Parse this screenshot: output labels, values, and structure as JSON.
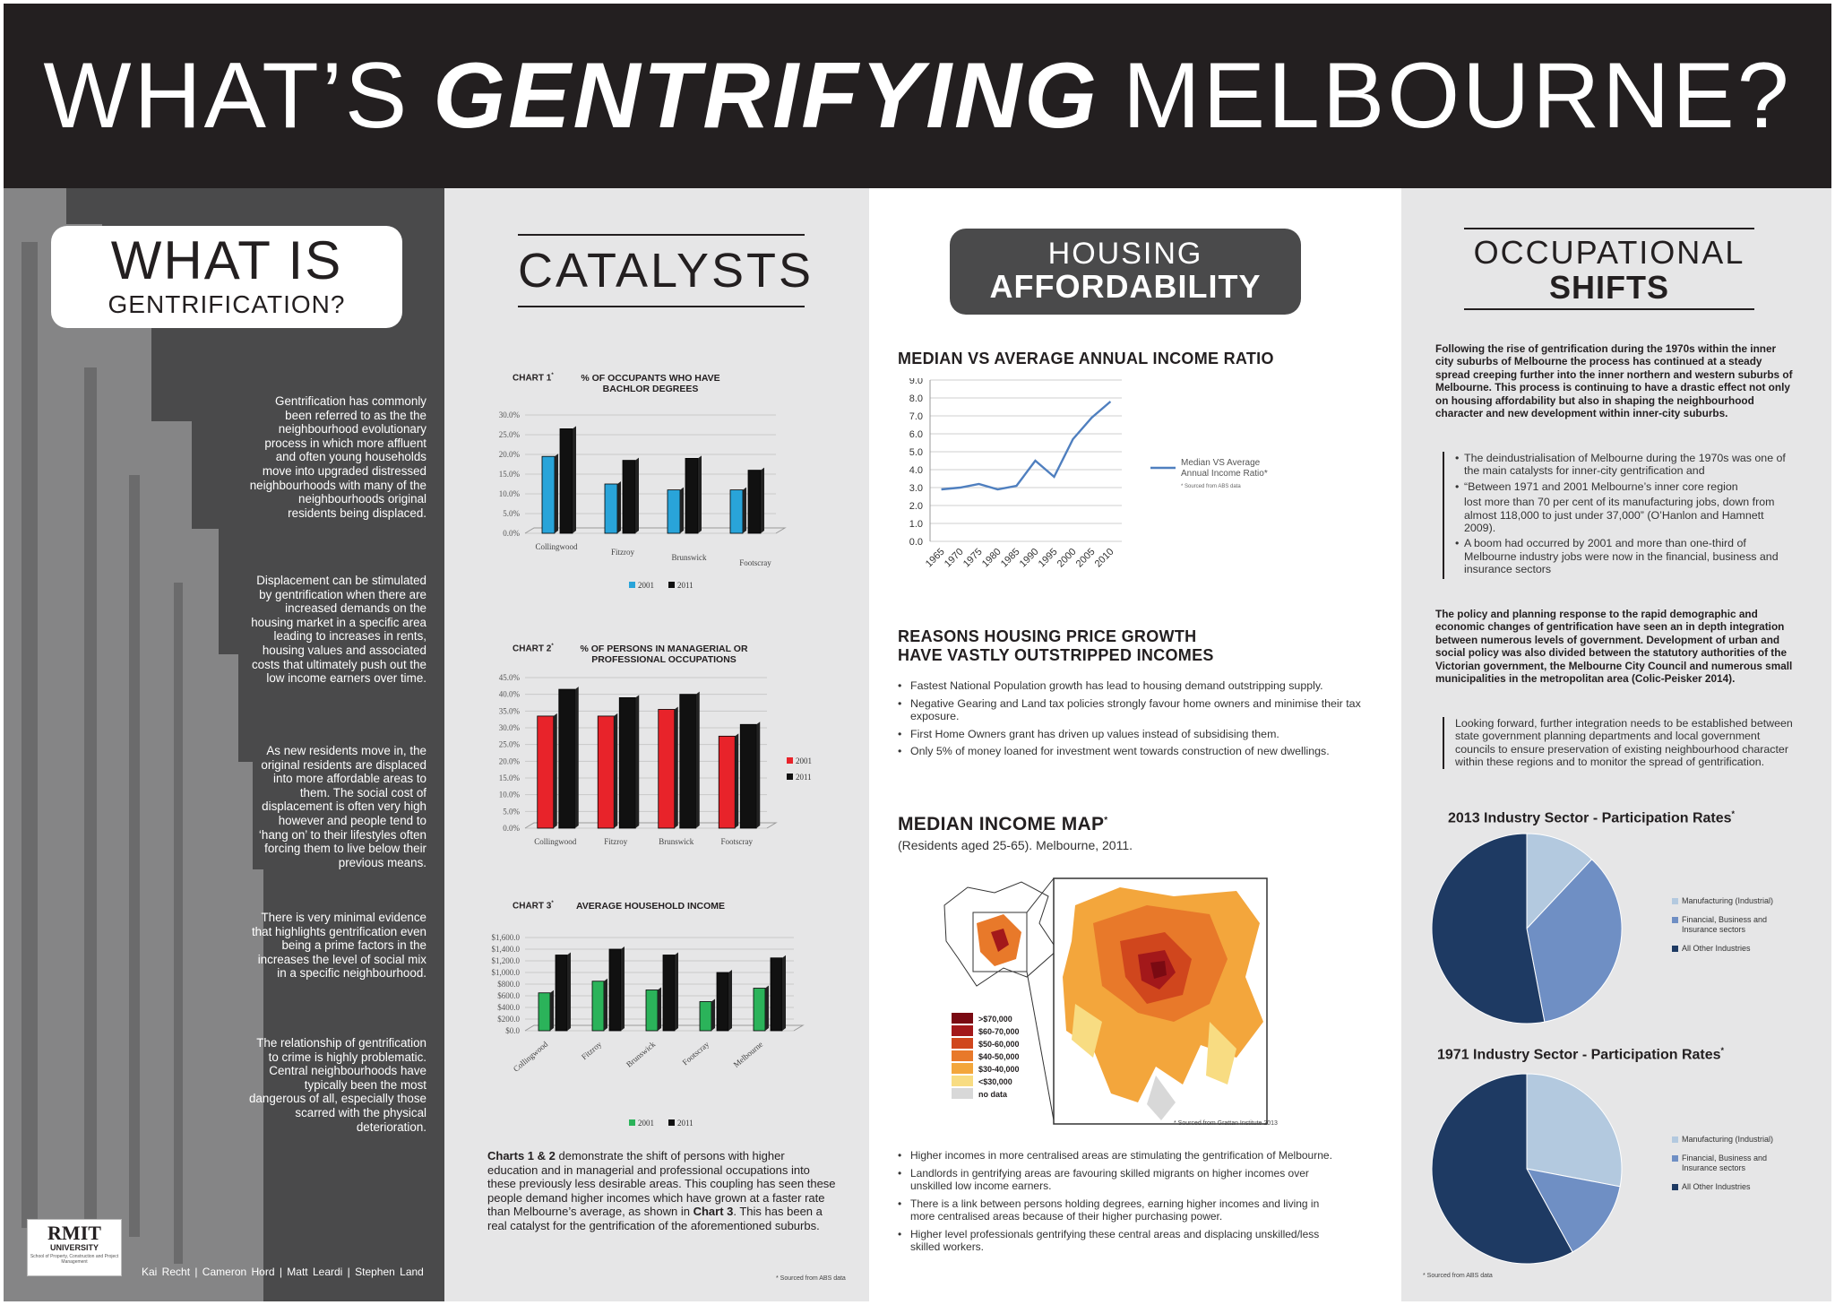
{
  "header": {
    "pre": "WHAT’S",
    "emphasis": "GENTRIFYING",
    "post": "MELBOURNE?"
  },
  "what_is": {
    "title_line1": "WHAT IS",
    "title_line2": "GENTRIFICATION?",
    "paragraphs": [
      "Gentrification has commonly been referred to as the the neighbourhood evolutionary process in which more affluent and often young households move into upgraded distressed neighbourhoods with many of the neighbourhoods original residents being displaced.",
      "Displacement can be stimulated by gentrification when there are increased demands on the housing market in a specific area leading to increases in rents, housing values and associated costs that ultimately push out the low income earners over time.",
      "As new residents move in, the original residents are displaced into more affordable areas to them. The social cost of displacement is often very high however and people tend to ‘hang on’ to their lifestyles often forcing them to live below their previous means.",
      "There is very minimal evidence that highlights gentrification even being a prime factors in the increases the level of social mix in a specific neighbourhood.",
      "The relationship of gentrification to crime is highly problematic. Central neighbourhoods have typically been the most dangerous of all, especially those scarred with the physical deterioration."
    ],
    "logo": {
      "word": "RMIT",
      "university": "UNIVERSITY",
      "dept": "School of Property, Construction and Project Management"
    },
    "authors": "Kai Recht  |  Cameron Hord  |  Matt Leardi  |  Stephen Land"
  },
  "catalysts": {
    "title": "CATALYSTS",
    "caption_b1": "Charts 1 & 2",
    "caption_t1": " demonstrate the shift of persons with higher education and in managerial and professional occupations into these previously less desirable areas. This coupling has seen these people demand higher incomes which have grown at a faster rate than Melbourne’s average, as shown in ",
    "caption_b2": "Chart 3",
    "caption_t2": ". This has been a real catalyst for the gentrification of the aforementioned suburbs.",
    "source": "* Sourced from ABS data"
  },
  "housing": {
    "title_line1": "HOUSING",
    "title_line2": "AFFORDABILITY",
    "ratio_heading": "MEDIAN VS AVERAGE ANNUAL INCOME RATIO",
    "reasons_heading_1": "REASONS HOUSING PRICE GROWTH",
    "reasons_heading_2": "HAVE VASTLY OUTSTRIPPED INCOMES",
    "reasons": [
      "Fastest National Population growth has lead to housing demand outstripping supply.",
      "Negative Gearing and Land tax policies strongly favour home owners and minimise their tax exposure.",
      "First Home Owners grant has driven up values instead of subsidising them.",
      "Only 5% of money loaned for investment went towards construction of new dwellings."
    ],
    "map_heading": "MEDIAN INCOME MAP",
    "map_heading_mark": "*",
    "map_sub": "(Residents aged 25-65). Melbourne, 2011.",
    "map_legend": [
      {
        "label": ">$70,000",
        "color": "#7a0a12"
      },
      {
        "label": "$60-70,000",
        "color": "#a3181a"
      },
      {
        "label": "$50-60,000",
        "color": "#d0461d"
      },
      {
        "label": "$40-50,000",
        "color": "#e8792a"
      },
      {
        "label": "$30-40,000",
        "color": "#f3a63c"
      },
      {
        "label": "<$30,000",
        "color": "#f8dc82"
      },
      {
        "label": "no data",
        "color": "#d8d8d8"
      }
    ],
    "map_source": "* Sourced from Grattan Institute 2013",
    "map_bullets": [
      "Higher incomes in more centralised areas are stimulating the gentrification of Melbourne.",
      "Landlords in gentrifying areas are favouring skilled migrants on higher incomes over unskilled low income earners.",
      "There is a link between persons holding degrees, earning higher incomes and living in more centralised areas because of their higher purchasing power.",
      "Higher level professionals gentrifying these central areas and displacing unskilled/less skilled workers."
    ]
  },
  "occupational": {
    "title_line1": "OCCUPATIONAL",
    "title_line2": "SHIFTS",
    "intro": "Following the rise of gentrification during the 1970s within the inner city suburbs of Melbourne the process has continued at a steady spread creeping further into the inner northern and western suburbs of Melbourne. This process is continuing to have a drastic effect not only on housing affordability but also in shaping the neighbourhood character and new development within inner-city suburbs.",
    "quote_bullets": [
      "The deindustrialisation of Melbourne during the 1970s was one of the main catalysts for inner-city gentrification and",
      "“Between 1971 and 2001 Melbourne’s inner core region"
    ],
    "quote_continuation": "lost more than 70 per cent of its manufacturing jobs, down from almost 118,000 to just under 37,000” (O’Hanlon and Hamnett 2009).",
    "quote_bullet_3": "A boom had occurred by 2001 and more than one-third of Melbourne industry jobs were now in the financial, business and insurance sectors",
    "policy": "The policy and planning response to the rapid demographic and economic changes of gentrification have seen an in depth integration between numerous levels of government. Development of urban and social policy was also divided between the statutory authorities of the Victorian government, the Melbourne City Council and numerous small municipalities in the metropolitan area (Colic-Peisker 2014).",
    "looking": "Looking forward, further integration needs to be established between state government planning departments and local government councils to ensure preservation of existing neighbourhood character within these regions and to monitor the spread of gentrification.",
    "source": "* Sourced from ABS data"
  },
  "chart_data": [
    {
      "id": "chart1",
      "type": "bar",
      "label": "CHART 1",
      "label_mark": "*",
      "title": "% OF OCCUPANTS WHO HAVE BACHLOR DEGREES",
      "categories": [
        "Collingwood",
        "Fitzroy",
        "Brunswick",
        "Footscray"
      ],
      "series": [
        {
          "name": "2001",
          "values": [
            19.5,
            12.5,
            11.0,
            11.0
          ]
        },
        {
          "name": "2011",
          "values": [
            26.5,
            18.5,
            19.0,
            16.0
          ]
        }
      ],
      "yticks": [
        "0.0%",
        "5.0%",
        "10.0%",
        "15.0%",
        "20.0%",
        "25.0%",
        "30.0%"
      ],
      "ylim": [
        0,
        30
      ],
      "colors": [
        "#29a4d9",
        "#111111"
      ]
    },
    {
      "id": "chart2",
      "type": "bar",
      "label": "CHART 2",
      "label_mark": "*",
      "title": "% OF PERSONS IN MANAGERIAL OR PROFESSIONAL OCCUPATIONS",
      "categories": [
        "Collingwood",
        "Fitzroy",
        "Brunswick",
        "Footscray"
      ],
      "series": [
        {
          "name": "2001",
          "values": [
            33.5,
            33.5,
            35.5,
            27.5
          ]
        },
        {
          "name": "2011",
          "values": [
            41.5,
            39.0,
            40.0,
            31.0
          ]
        }
      ],
      "yticks": [
        "0.0%",
        "5.0%",
        "10.0%",
        "15.0%",
        "20.0%",
        "25.0%",
        "30.0%",
        "35.0%",
        "40.0%",
        "45.0%"
      ],
      "ylim": [
        0,
        45
      ],
      "colors": [
        "#e8232a",
        "#111111"
      ]
    },
    {
      "id": "chart3",
      "type": "bar",
      "label": "CHART 3",
      "label_mark": "*",
      "title": "AVERAGE HOUSEHOLD INCOME",
      "categories": [
        "Collingwood",
        "Fitzroy",
        "Brunswick",
        "Footscray",
        "Melbourne"
      ],
      "series": [
        {
          "name": "2001",
          "values": [
            650,
            850,
            700,
            500,
            730
          ]
        },
        {
          "name": "2011",
          "values": [
            1300,
            1400,
            1300,
            1000,
            1250
          ]
        }
      ],
      "yticks": [
        "$0.0",
        "$200.0",
        "$400.0",
        "$600.0",
        "$800.0",
        "$1,000.0",
        "$1,200.0",
        "$1,400.0",
        "$1,600.0"
      ],
      "ylim": [
        0,
        1600
      ],
      "colors": [
        "#2bb35a",
        "#111111"
      ]
    },
    {
      "id": "ratio",
      "type": "line",
      "x": [
        1965,
        1970,
        1975,
        1980,
        1985,
        1990,
        1995,
        2000,
        2005,
        2010
      ],
      "series": [
        {
          "name": "Median VS Average Annual Income Ratio*",
          "values": [
            2.9,
            3.0,
            3.2,
            2.9,
            3.1,
            4.5,
            3.6,
            5.7,
            6.9,
            7.8
          ]
        }
      ],
      "yticks": [
        "0.0",
        "1.0",
        "2.0",
        "3.0",
        "4.0",
        "5.0",
        "6.0",
        "7.0",
        "8.0",
        "9.0"
      ],
      "ylim": [
        0,
        9
      ],
      "legend_note": "* Sourced from ABS data",
      "color": "#4f7fbf"
    },
    {
      "id": "pie2013",
      "type": "pie",
      "title": "2013 Industry Sector - Participation Rates",
      "title_mark": "*",
      "labels": [
        "Manufacturing (Industrial)",
        "Financial, Business and Insurance sectors",
        "All Other Industries"
      ],
      "values": [
        12,
        35,
        53
      ],
      "colors": [
        "#b3c9df",
        "#6f8fc4",
        "#1e3a63"
      ]
    },
    {
      "id": "pie1971",
      "type": "pie",
      "title": "1971 Industry Sector - Participation Rates",
      "title_mark": "*",
      "labels": [
        "Manufacturing (Industrial)",
        "Financial, Business and Insurance sectors",
        "All Other Industries"
      ],
      "values": [
        28,
        14,
        58
      ],
      "colors": [
        "#b3c9df",
        "#6f8fc4",
        "#1e3a63"
      ]
    }
  ]
}
